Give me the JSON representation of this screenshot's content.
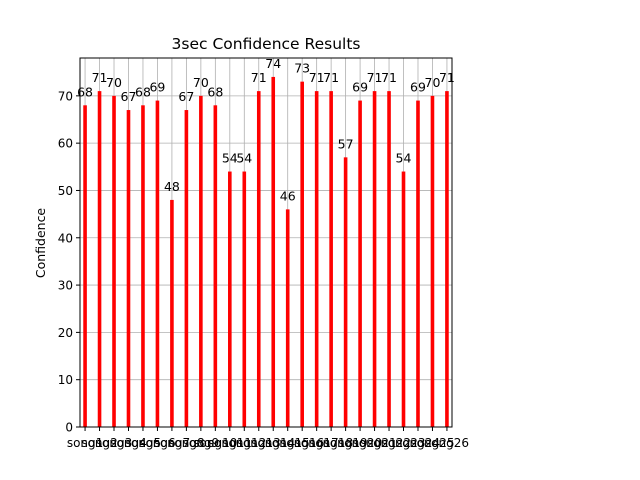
{
  "chart_data": {
    "type": "bar",
    "title": "3sec Confidence Results",
    "xlabel": "",
    "ylabel": "Confidence",
    "ylim": [
      0,
      78
    ],
    "grid": true,
    "bar_color": "#ff0000",
    "categories": [
      "song1",
      "song2",
      "song3",
      "song4",
      "song5",
      "song6",
      "song7",
      "song8",
      "song9",
      "song10",
      "song11",
      "song12",
      "song13",
      "song14",
      "song15",
      "song16",
      "song17",
      "song18",
      "song19",
      "song20",
      "song21",
      "song22",
      "song23",
      "song24",
      "song25",
      "song26"
    ],
    "values": [
      68,
      71,
      70,
      67,
      68,
      69,
      48,
      67,
      70,
      68,
      54,
      54,
      71,
      74,
      46,
      73,
      71,
      71,
      57,
      69,
      71,
      71,
      54,
      69,
      70,
      71
    ],
    "y_ticks": [
      0,
      10,
      20,
      30,
      40,
      50,
      60,
      70
    ]
  }
}
